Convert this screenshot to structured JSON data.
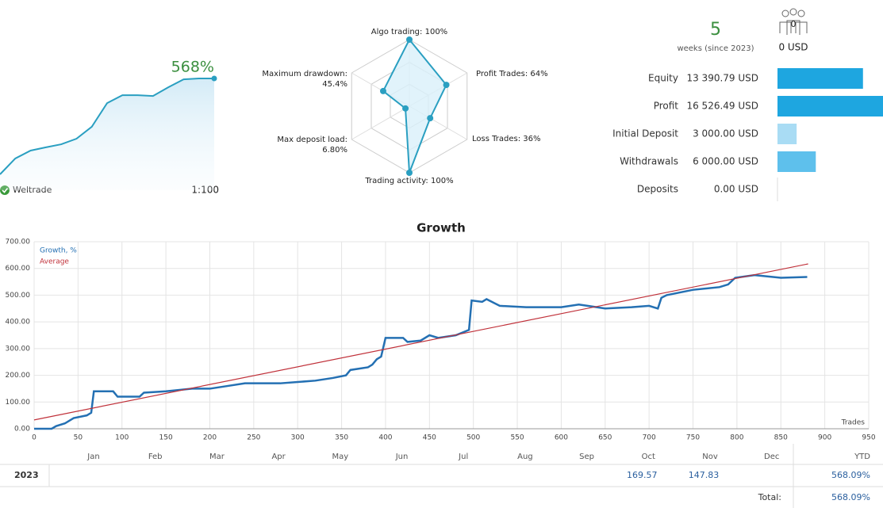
{
  "header": {
    "growth": "568%",
    "account_label": "Weltrade",
    "leverage": "1:100",
    "weeks": 5,
    "weeks_label": "weeks (since 2023)",
    "subscribers": 0,
    "subscribers_funds": "0 USD"
  },
  "chart_data": [
    {
      "type": "area",
      "color": "#2a9fc1",
      "values": [
        0,
        94,
        141,
        160,
        178,
        211,
        282,
        422,
        469,
        469,
        464,
        516,
        563,
        568,
        568
      ]
    },
    {
      "type": "radar",
      "color": "#2a9fc1",
      "categories": [
        "Algo trading:",
        "Profit Trades:",
        "Loss Trades:",
        "Trading activity:",
        "Max deposit load:",
        "Maximum drawdown:"
      ],
      "values": [
        100,
        64,
        36,
        100,
        6.8,
        45.4
      ],
      "value_labels": [
        "100%",
        "64%",
        "36%",
        "100%",
        "6.80%",
        "45.4%"
      ]
    },
    {
      "type": "hbar",
      "categories": [
        "Equity",
        "Profit",
        "Initial Deposit",
        "Withdrawals",
        "Deposits"
      ],
      "values": [
        13390.79,
        16526.49,
        3000,
        6000,
        0
      ],
      "value_labels": [
        "13 390.79 USD",
        "16 526.49 USD",
        "3 000.00 USD",
        "6 000.00 USD",
        "0.00 USD"
      ],
      "colors": [
        "#1ea6e0",
        "#1ea6e0",
        "#a9dcf4",
        "#5ec0ec",
        "#a9dcf4"
      ]
    },
    {
      "type": "line",
      "title": "Growth",
      "xlabel": "Trades",
      "xlim": [
        0,
        950
      ],
      "xticks": [
        0,
        50,
        100,
        150,
        200,
        250,
        300,
        350,
        400,
        450,
        500,
        550,
        600,
        650,
        700,
        750,
        800,
        850,
        900,
        950
      ],
      "ylim": [
        0,
        700
      ],
      "yticks": [
        {
          "value": 0,
          "label": "0.00"
        },
        {
          "value": 100,
          "label": "100.00"
        },
        {
          "value": 200,
          "label": "200.00"
        },
        {
          "value": 300,
          "label": "300.00"
        },
        {
          "value": 400,
          "label": "400.00"
        },
        {
          "value": 500,
          "label": "500.00"
        },
        {
          "value": 600,
          "label": "600.00"
        },
        {
          "value": 700,
          "label": "700.00"
        }
      ],
      "grid": true,
      "series": [
        {
          "name": "Growth, %",
          "color": "#2470b3",
          "x": [
            0,
            20,
            25,
            35,
            45,
            60,
            65,
            68,
            90,
            95,
            120,
            125,
            150,
            180,
            200,
            220,
            240,
            280,
            300,
            320,
            340,
            355,
            360,
            380,
            385,
            390,
            395,
            400,
            420,
            425,
            440,
            450,
            460,
            480,
            495,
            498,
            510,
            515,
            530,
            560,
            600,
            620,
            630,
            650,
            680,
            700,
            710,
            714,
            720,
            750,
            780,
            790,
            798,
            820,
            850,
            880
          ],
          "values": [
            0,
            0,
            10,
            20,
            40,
            50,
            60,
            140,
            140,
            120,
            120,
            135,
            140,
            150,
            150,
            160,
            170,
            170,
            175,
            180,
            190,
            200,
            220,
            230,
            240,
            260,
            270,
            340,
            340,
            325,
            330,
            350,
            340,
            350,
            370,
            480,
            475,
            485,
            460,
            455,
            455,
            465,
            460,
            450,
            455,
            460,
            450,
            490,
            500,
            520,
            530,
            540,
            565,
            575,
            565,
            568
          ]
        },
        {
          "name": "Average",
          "color": "#c0313a",
          "x": [
            0,
            881
          ],
          "values": [
            33,
            617
          ]
        }
      ]
    }
  ],
  "table": {
    "columns": [
      "Jan",
      "Feb",
      "Mar",
      "Apr",
      "May",
      "Jun",
      "Jul",
      "Aug",
      "Sep",
      "Oct",
      "Nov",
      "Dec",
      "YTD"
    ],
    "rows": [
      {
        "year": "2023",
        "cells": [
          null,
          null,
          null,
          null,
          null,
          null,
          null,
          null,
          null,
          "169.57",
          "147.83",
          null
        ],
        "ytd": "568.09%"
      }
    ],
    "total_label": "Total:",
    "total": "568.09%"
  }
}
